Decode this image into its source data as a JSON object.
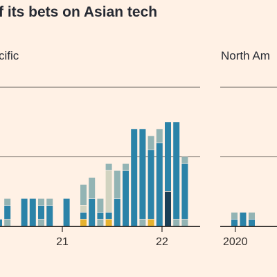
{
  "title": "f its bets on Asian tech",
  "panels": [
    {
      "label": "cific"
    },
    {
      "label": "North Am"
    }
  ],
  "colors": {
    "background": "#fff1e5",
    "teal": "#2b83a8",
    "grey": "#93b4b4",
    "beige": "#d1d3c0",
    "gold": "#e6b22e",
    "navy": "#1b3f57",
    "gridline": "#33302e"
  },
  "chart_data": [
    {
      "type": "bar",
      "stacked": true,
      "panel": "cific",
      "ylim": [
        0,
        20
      ],
      "x_tick_labels": [
        "21",
        "22"
      ],
      "series_colors": [
        "gold",
        "navy",
        "grey",
        "teal",
        "beige",
        "grey"
      ],
      "bars": [
        [
          0,
          0,
          0,
          1,
          0,
          0
        ],
        [
          0,
          0,
          1,
          2,
          0,
          1
        ],
        [
          0,
          0,
          0,
          0,
          0,
          0
        ],
        [
          0,
          0,
          0,
          4,
          0,
          0
        ],
        [
          0,
          0,
          0,
          4,
          0,
          0
        ],
        [
          0,
          0,
          1,
          2,
          0,
          1
        ],
        [
          0,
          0,
          0,
          3,
          0,
          1
        ],
        [
          0,
          0,
          0,
          0,
          0,
          0
        ],
        [
          0,
          0,
          0,
          4,
          0,
          0
        ],
        [
          0,
          0,
          0,
          0,
          0,
          0
        ],
        [
          1,
          0,
          0,
          1,
          1,
          3
        ],
        [
          0,
          0,
          0,
          4,
          0,
          3
        ],
        [
          0,
          0,
          1,
          1,
          0,
          2
        ],
        [
          1,
          0,
          0,
          1,
          6,
          1
        ],
        [
          0,
          0,
          0,
          4,
          0,
          4
        ],
        [
          0,
          0,
          0,
          8,
          0,
          1
        ],
        [
          0,
          0,
          0,
          14,
          0,
          0
        ],
        [
          0,
          0,
          1,
          13,
          0,
          0
        ],
        [
          1,
          0,
          0,
          10,
          0,
          2
        ],
        [
          0,
          0,
          0,
          12,
          0,
          2
        ],
        [
          0,
          5,
          0,
          10,
          0,
          0
        ],
        [
          0,
          0,
          1,
          14,
          0,
          0
        ],
        [
          0,
          0,
          1,
          8,
          0,
          1
        ]
      ]
    },
    {
      "type": "bar",
      "stacked": true,
      "panel": "North Am",
      "ylim": [
        0,
        20
      ],
      "x_tick_labels": [
        "2020"
      ],
      "series_colors": [
        "teal",
        "grey"
      ],
      "bars": [
        [
          1,
          1
        ],
        [
          2,
          0
        ],
        [
          1,
          1
        ],
        [
          0,
          0
        ],
        [
          0,
          0
        ],
        [
          0,
          0
        ],
        [
          0,
          0
        ],
        [
          0,
          0
        ],
        [
          0,
          0
        ],
        [
          0,
          0
        ],
        [
          0,
          0
        ],
        [
          0,
          0
        ],
        [
          0,
          0
        ]
      ]
    }
  ]
}
